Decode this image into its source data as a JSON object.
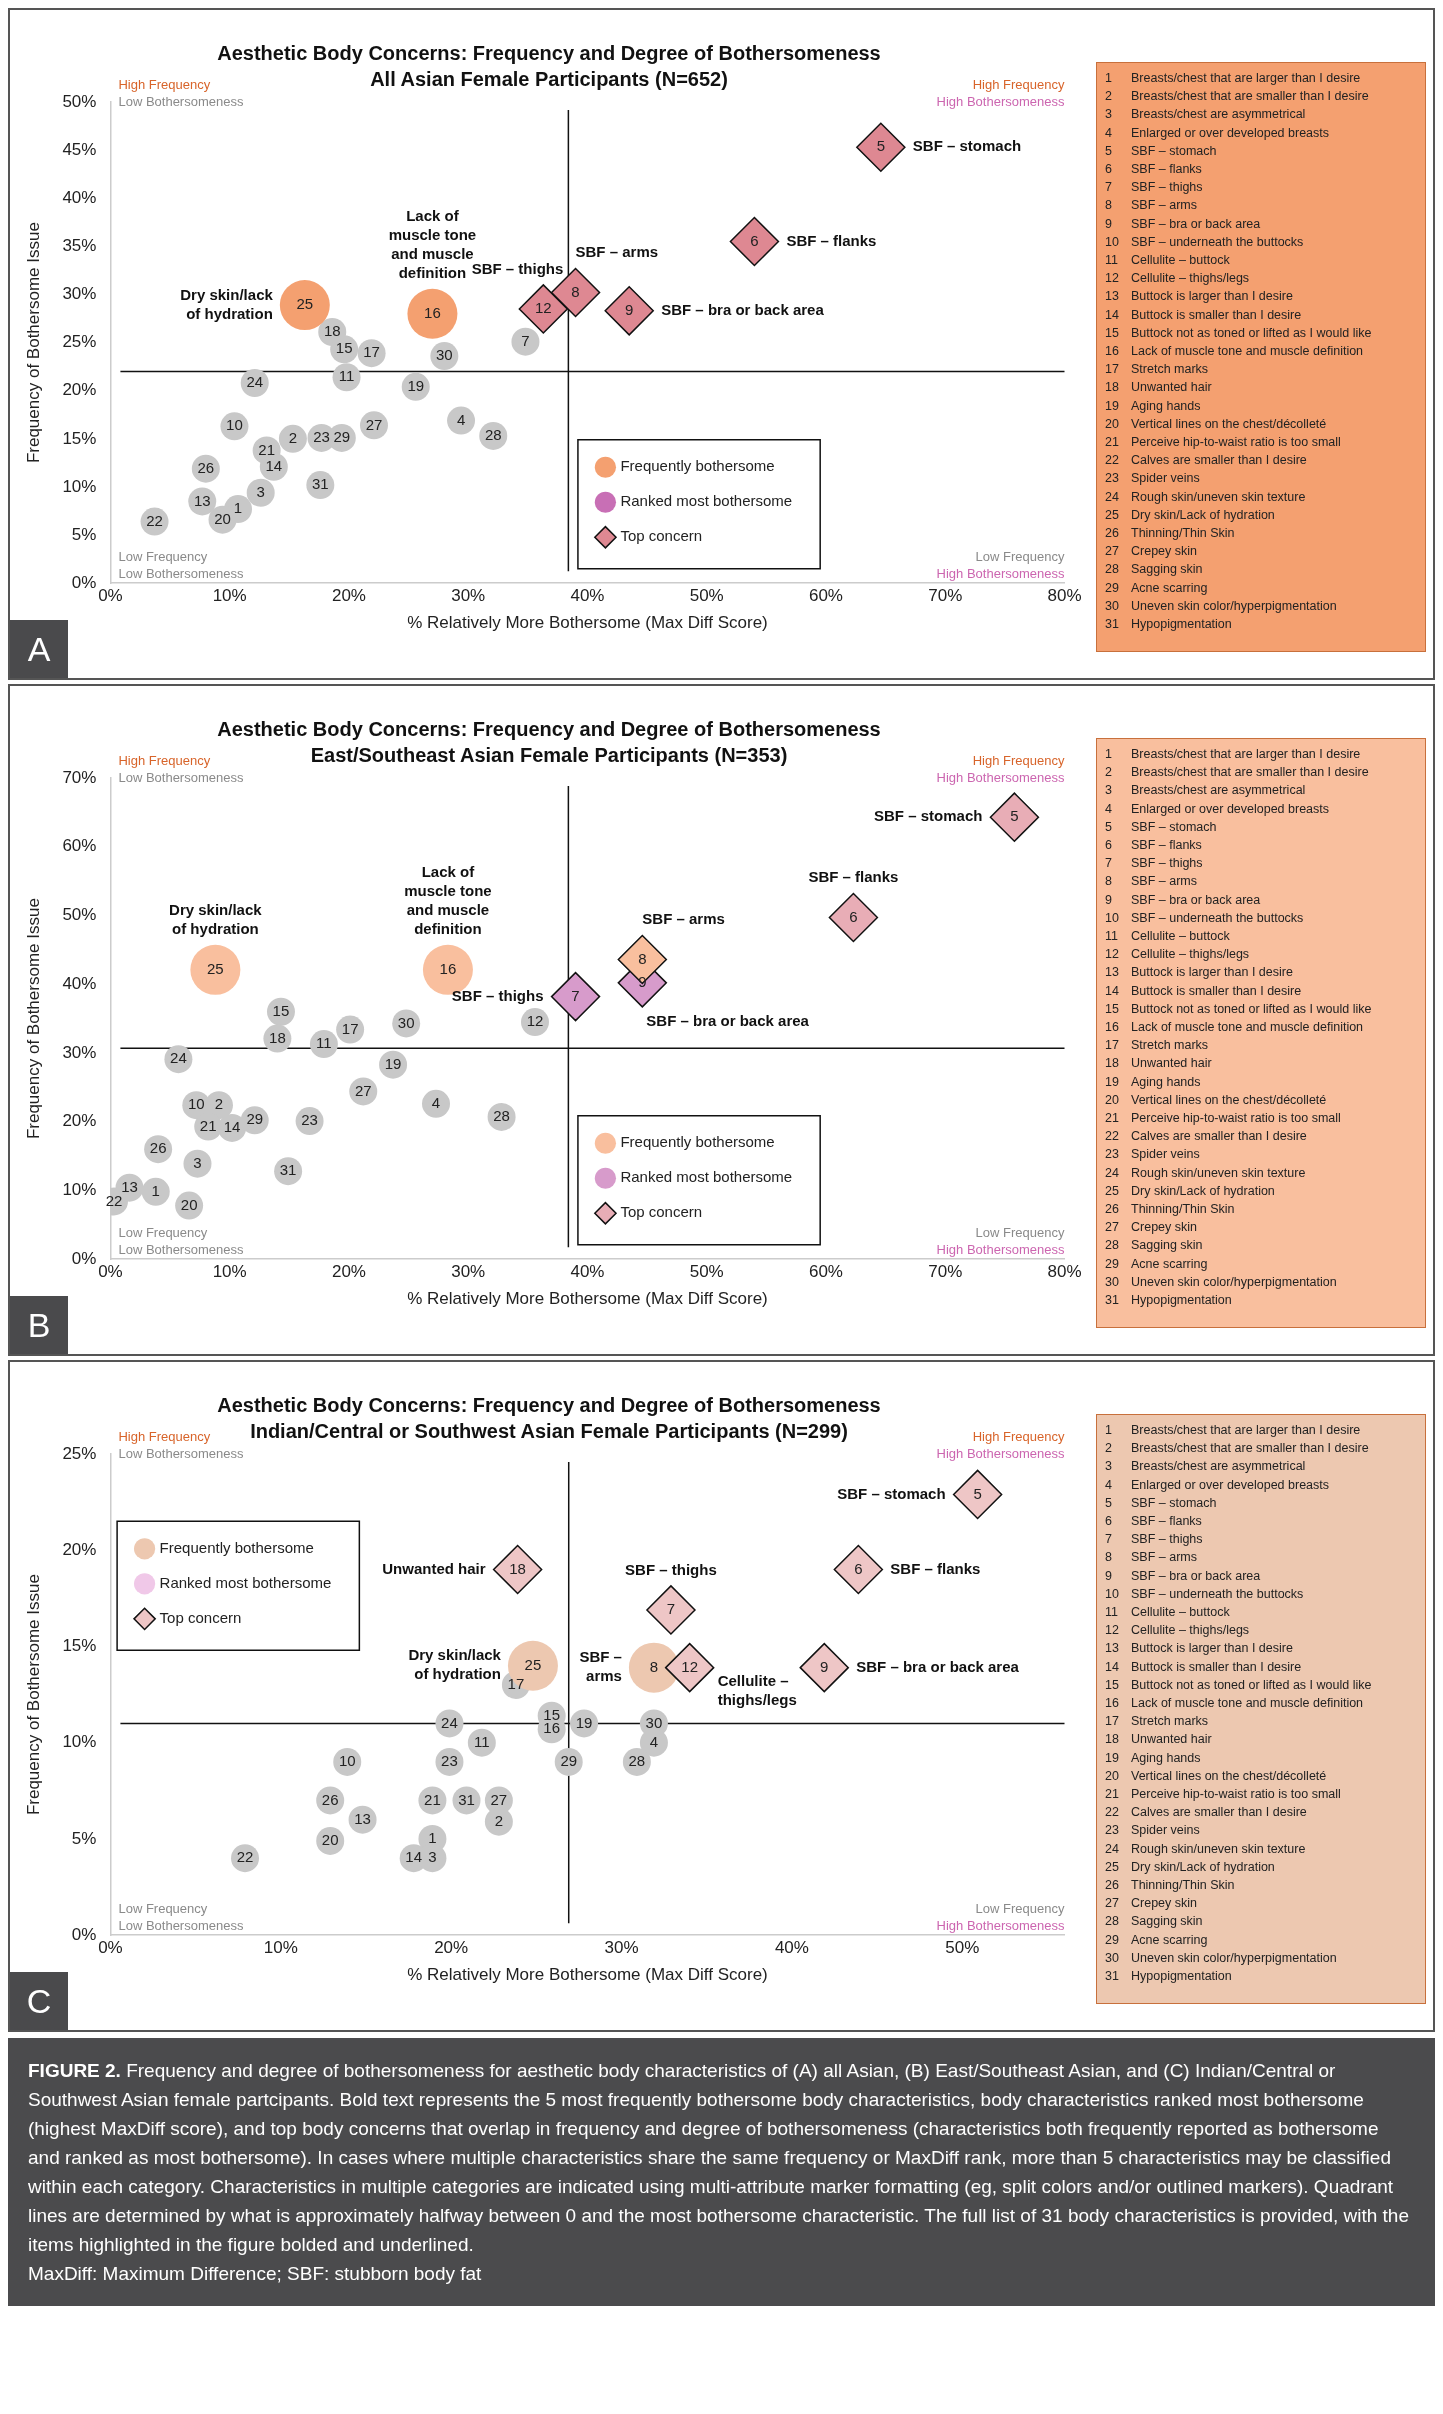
{
  "chart_data": [
    {
      "type": "scatter",
      "title": "Aesthetic Body Concerns: Frequency and Degree of Bothersomeness",
      "subtitle": "All Asian Female Participants (N=652)",
      "xlabel": "% Relatively More Bothersome (Max Diff Score)",
      "ylabel": "Frequency of Bothersome Issue",
      "xlim": [
        0,
        80
      ],
      "ylim": [
        0,
        50
      ],
      "xticks": [
        {
          "value": 0,
          "label": "0%"
        },
        {
          "value": 10,
          "label": "10%"
        },
        {
          "value": 20,
          "label": "20%"
        },
        {
          "value": 30,
          "label": "30%"
        },
        {
          "value": 40,
          "label": "40%"
        },
        {
          "value": 50,
          "label": "50%"
        },
        {
          "value": 60,
          "label": "60%"
        },
        {
          "value": 70,
          "label": "70%"
        },
        {
          "value": 80,
          "label": "80%"
        }
      ],
      "yticks": [
        {
          "value": 0,
          "label": "0%"
        },
        {
          "value": 5,
          "label": "5%"
        },
        {
          "value": 10,
          "label": "10%"
        },
        {
          "value": 15,
          "label": "15%"
        },
        {
          "value": 20,
          "label": "20%"
        },
        {
          "value": 25,
          "label": "25%"
        },
        {
          "value": 30,
          "label": "30%"
        },
        {
          "value": 35,
          "label": "35%"
        },
        {
          "value": 40,
          "label": "40%"
        },
        {
          "value": 45,
          "label": "45%"
        },
        {
          "value": 50,
          "label": "50%"
        }
      ],
      "legend": "bottom",
      "series": [
        {
          "color": "#c8c8c8",
          "marker": "circle",
          "x": [
            34.8,
            18.6,
            19.6,
            21.9,
            28.0,
            19.8,
            25.6,
            12.1,
            22.1,
            29.4,
            32.1,
            10.4,
            15.3,
            17.7,
            19.4,
            13.1,
            13.7,
            8.0,
            17.6,
            12.6,
            7.7,
            10.7,
            9.4,
            3.7
          ],
          "values": [
            25.1,
            26.1,
            24.3,
            23.9,
            23.6,
            21.4,
            20.4,
            20.8,
            16.4,
            16.9,
            15.3,
            16.3,
            15.0,
            15.1,
            15.1,
            13.8,
            12.1,
            11.9,
            10.2,
            9.4,
            8.5,
            7.7,
            6.6,
            6.4
          ]
        },
        {
          "name": "Frequently bothersome",
          "color": "#f4a070",
          "marker": "circle",
          "x": [
            16.3,
            27.0
          ],
          "values": [
            28.9,
            28.0
          ]
        },
        {
          "name": "Ranked most bothersome",
          "color": "#c86fb5",
          "marker": "circle"
        },
        {
          "name": "Top concern",
          "color": "#ffffff",
          "marker": "diamond",
          "x": [
            64.6,
            54.0,
            36.3,
            39.0,
            43.5
          ],
          "values": [
            45.3,
            35.5,
            28.5,
            30.2,
            28.3
          ],
          "colors": [
            "#de8892",
            "#de8892",
            "#de8892",
            "#de8892",
            "#de8892"
          ]
        }
      ],
      "ref_lines": [
        {
          "axis": "x",
          "value": 38.4
        },
        {
          "axis": "y",
          "value": 22.0
        }
      ],
      "annotations": [
        "High Frequency",
        "Low Bothersomeness",
        "High Frequency",
        "High Bothersomeness",
        "Low Frequency",
        "Low Bothersomeness",
        "Low Frequency",
        "High Bothersomeness",
        "A",
        "1 Breasts/chest that are larger than I desire",
        "2 Breasts/chest that are smaller than I desire",
        "3 Breasts/chest are asymmetrical",
        "4 Enlarged or over developed breasts",
        "5 SBF – stomach",
        "6 SBF – flanks",
        "7 SBF – thighs",
        "8 SBF – arms",
        "9 SBF – bra or back area",
        "10 SBF – underneath the buttocks",
        "11 Cellulite – buttock",
        "12 Cellulite – thighs/legs",
        "13 Buttock is larger than I desire",
        "14 Buttock is smaller than I desire",
        "15 Buttock not as toned or lifted as I would like",
        "16 Lack of muscle tone and muscle definition",
        "17 Stretch marks",
        "18 Unwanted hair",
        "19 Aging hands",
        "20 Vertical lines on the chest/décolleté",
        "21 Perceive hip-to-waist ratio is too small",
        "22 Calves are smaller than I desire",
        "23 Spider veins",
        "24 Rough skin/uneven skin texture",
        "25 Dry skin/Lack of hydration",
        "26 Thinning/Thin Skin",
        "27 Crepey skin",
        "28 Sagging skin",
        "29 Acne scarring",
        "30 Uneven skin color/hyperpigmentation",
        "31 Hypopigmentation",
        {
          "text": "Dry skin/lack\nof hydration",
          "x": 16.3,
          "y": 28.9
        },
        {
          "text": "Lack of\nmuscle tone\nand muscle\ndefinition",
          "x": 27.0,
          "y": 28.0
        },
        {
          "text": "SBF – thighs",
          "x": 36.3,
          "y": 28.5
        },
        {
          "text": "SBF – arms",
          "x": 39.0,
          "y": 30.2
        },
        {
          "text": "SBF – stomach",
          "x": 64.6,
          "y": 45.3
        },
        {
          "text": "SBF – flanks",
          "x": 54.0,
          "y": 35.5
        },
        {
          "text": "SBF – bra or back area",
          "x": 43.5,
          "y": 28.3
        },
        {
          "text": "7",
          "x": 34.8,
          "y": 25.1
        },
        {
          "text": "18",
          "x": 18.6,
          "y": 26.1
        },
        {
          "text": "15",
          "x": 19.6,
          "y": 24.3
        },
        {
          "text": "17",
          "x": 21.9,
          "y": 23.9
        },
        {
          "text": "30",
          "x": 28.0,
          "y": 23.6
        },
        {
          "text": "11",
          "x": 19.8,
          "y": 21.4
        },
        {
          "text": "19",
          "x": 25.6,
          "y": 20.4
        },
        {
          "text": "24",
          "x": 12.1,
          "y": 20.8
        },
        {
          "text": "27",
          "x": 22.1,
          "y": 16.4
        },
        {
          "text": "4",
          "x": 29.4,
          "y": 16.9
        },
        {
          "text": "28",
          "x": 32.1,
          "y": 15.3
        },
        {
          "text": "10",
          "x": 10.4,
          "y": 16.3
        },
        {
          "text": "2",
          "x": 15.3,
          "y": 15.0
        },
        {
          "text": "23",
          "x": 17.7,
          "y": 15.1
        },
        {
          "text": "29",
          "x": 19.4,
          "y": 15.1
        },
        {
          "text": "21",
          "x": 13.1,
          "y": 13.8
        },
        {
          "text": "14",
          "x": 13.7,
          "y": 12.1
        },
        {
          "text": "26",
          "x": 8.0,
          "y": 11.9
        },
        {
          "text": "31",
          "x": 17.6,
          "y": 10.2
        },
        {
          "text": "3",
          "x": 12.6,
          "y": 9.4
        },
        {
          "text": "13",
          "x": 7.7,
          "y": 8.5
        },
        {
          "text": "1",
          "x": 10.7,
          "y": 7.7
        },
        {
          "text": "20",
          "x": 9.4,
          "y": 6.6
        },
        {
          "text": "22",
          "x": 3.7,
          "y": 6.4
        },
        {
          "text": "25",
          "x": 16.3,
          "y": 28.9
        },
        {
          "text": "16",
          "x": 27.0,
          "y": 28.0
        },
        {
          "text": "5",
          "x": 64.6,
          "y": 45.3
        },
        {
          "text": "6",
          "x": 54.0,
          "y": 35.5
        },
        {
          "text": "12",
          "x": 36.3,
          "y": 28.5
        },
        {
          "text": "8",
          "x": 39.0,
          "y": 30.2
        },
        {
          "text": "9",
          "x": 43.5,
          "y": 28.3
        }
      ]
    },
    {
      "type": "scatter",
      "title": "Aesthetic Body Concerns: Frequency and Degree of Bothersomeness",
      "subtitle": "East/Southeast Asian Female Participants (N=353)",
      "xlabel": "% Relatively More Bothersome (Max Diff Score)",
      "ylabel": "Frequency of Bothersome Issue",
      "xlim": [
        0,
        80
      ],
      "ylim": [
        0,
        70
      ],
      "xticks": [
        {
          "value": 0,
          "label": "0%"
        },
        {
          "value": 10,
          "label": "10%"
        },
        {
          "value": 20,
          "label": "20%"
        },
        {
          "value": 30,
          "label": "30%"
        },
        {
          "value": 40,
          "label": "40%"
        },
        {
          "value": 50,
          "label": "50%"
        },
        {
          "value": 60,
          "label": "60%"
        },
        {
          "value": 70,
          "label": "70%"
        },
        {
          "value": 80,
          "label": "80%"
        }
      ],
      "yticks": [
        {
          "value": 0,
          "label": "0%"
        },
        {
          "value": 10,
          "label": "10%"
        },
        {
          "value": 20,
          "label": "20%"
        },
        {
          "value": 30,
          "label": "30%"
        },
        {
          "value": 40,
          "label": "40%"
        },
        {
          "value": 50,
          "label": "50%"
        },
        {
          "value": 60,
          "label": "60%"
        },
        {
          "value": 70,
          "label": "70%"
        }
      ],
      "legend": "bottom",
      "series": [
        {
          "color": "#c8c8c8",
          "marker": "circle",
          "x": [
            35.6,
            14.3,
            14.0,
            17.9,
            20.1,
            24.8,
            5.7,
            23.7,
            21.2,
            27.3,
            32.8,
            7.2,
            9.1,
            8.2,
            10.2,
            12.1,
            16.7,
            4.0,
            7.3,
            14.9,
            1.6,
            3.8,
            0.3,
            6.6
          ],
          "values": [
            34.5,
            36.0,
            32.1,
            31.3,
            33.4,
            34.3,
            29.1,
            28.3,
            24.4,
            22.6,
            20.7,
            22.4,
            22.4,
            19.3,
            19.1,
            20.2,
            20.1,
            16.0,
            13.9,
            12.8,
            10.4,
            9.8,
            8.4,
            7.8
          ]
        },
        {
          "name": "Frequently bothersome",
          "color": "#f9bf9e",
          "marker": "circle",
          "x": [
            8.8,
            28.3
          ],
          "values": [
            42.1,
            42.1
          ]
        },
        {
          "name": "Ranked most bothersome",
          "color": "#d79bcb",
          "marker": "circle"
        },
        {
          "name": "Top concern",
          "color": "#ffffff",
          "marker": "diamond",
          "x": [
            75.8,
            62.3,
            44.6,
            44.6,
            39.0
          ],
          "values": [
            64.3,
            49.7,
            40.2,
            43.6,
            38.2
          ],
          "colors": [
            "#e8adb6",
            "#e8adb6",
            "#d79bcb",
            "#f9bf9e",
            "#d79bcb"
          ]
        }
      ],
      "ref_lines": [
        {
          "axis": "x",
          "value": 38.4
        },
        {
          "axis": "y",
          "value": 30.7
        }
      ],
      "annotations": [
        "High Frequency",
        "Low Bothersomeness",
        "High Frequency",
        "High Bothersomeness",
        "Low Frequency",
        "Low Bothersomeness",
        "Low Frequency",
        "High Bothersomeness",
        "B",
        "1 Breasts/chest that are larger than I desire",
        "2 Breasts/chest that are smaller than I desire",
        "3 Breasts/chest are asymmetrical",
        "4 Enlarged or over developed breasts",
        "5 SBF – stomach",
        "6 SBF – flanks",
        "7 SBF – thighs",
        "8 SBF – arms",
        "9 SBF – bra or back area",
        "10 SBF – underneath the buttocks",
        "11 Cellulite – buttock",
        "12 Cellulite – thighs/legs",
        "13 Buttock is larger than I desire",
        "14 Buttock is smaller than I desire",
        "15 Buttock not as toned or lifted as I would like",
        "16 Lack of muscle tone and muscle definition",
        "17 Stretch marks",
        "18 Unwanted hair",
        "19 Aging hands",
        "20 Vertical lines on the chest/décolleté",
        "21 Perceive hip-to-waist ratio is too small",
        "22 Calves are smaller than I desire",
        "23 Spider veins",
        "24 Rough skin/uneven skin texture",
        "25 Dry skin/Lack of hydration",
        "26 Thinning/Thin Skin",
        "27 Crepey skin",
        "28 Sagging skin",
        "29 Acne scarring",
        "30 Uneven skin color/hyperpigmentation",
        "31 Hypopigmentation",
        {
          "text": "Dry skin/lack\nof hydration",
          "x": 8.8,
          "y": 42.1
        },
        {
          "text": "Lack of\nmuscle tone\nand muscle\ndefinition",
          "x": 28.3,
          "y": 42.1
        },
        {
          "text": "SBF – thighs",
          "x": 39.0,
          "y": 38.2
        },
        {
          "text": "SBF – arms",
          "x": 44.6,
          "y": 43.6
        },
        {
          "text": "SBF – stomach",
          "x": 75.8,
          "y": 64.3
        },
        {
          "text": "SBF – flanks",
          "x": 62.3,
          "y": 49.7
        },
        {
          "text": "SBF – bra or back area",
          "x": 44.6,
          "y": 40.2
        },
        {
          "text": "12",
          "x": 35.6,
          "y": 34.5
        },
        {
          "text": "15",
          "x": 14.3,
          "y": 36.0
        },
        {
          "text": "18",
          "x": 14.0,
          "y": 32.1
        },
        {
          "text": "11",
          "x": 17.9,
          "y": 31.3
        },
        {
          "text": "17",
          "x": 20.1,
          "y": 33.4
        },
        {
          "text": "30",
          "x": 24.8,
          "y": 34.3
        },
        {
          "text": "24",
          "x": 5.7,
          "y": 29.1
        },
        {
          "text": "19",
          "x": 23.7,
          "y": 28.3
        },
        {
          "text": "27",
          "x": 21.2,
          "y": 24.4
        },
        {
          "text": "4",
          "x": 27.3,
          "y": 22.6
        },
        {
          "text": "28",
          "x": 32.8,
          "y": 20.7
        },
        {
          "text": "10",
          "x": 7.2,
          "y": 22.4
        },
        {
          "text": "2",
          "x": 9.1,
          "y": 22.4
        },
        {
          "text": "21",
          "x": 8.2,
          "y": 19.3
        },
        {
          "text": "14",
          "x": 10.2,
          "y": 19.1
        },
        {
          "text": "29",
          "x": 12.1,
          "y": 20.2
        },
        {
          "text": "23",
          "x": 16.7,
          "y": 20.1
        },
        {
          "text": "26",
          "x": 4.0,
          "y": 16.0
        },
        {
          "text": "3",
          "x": 7.3,
          "y": 13.9
        },
        {
          "text": "31",
          "x": 14.9,
          "y": 12.8
        },
        {
          "text": "13",
          "x": 1.6,
          "y": 10.4
        },
        {
          "text": "1",
          "x": 3.8,
          "y": 9.8
        },
        {
          "text": "22",
          "x": 0.3,
          "y": 8.4
        },
        {
          "text": "20",
          "x": 6.6,
          "y": 7.8
        },
        {
          "text": "25",
          "x": 8.8,
          "y": 42.1
        },
        {
          "text": "16",
          "x": 28.3,
          "y": 42.1
        },
        {
          "text": "5",
          "x": 75.8,
          "y": 64.3
        },
        {
          "text": "6",
          "x": 62.3,
          "y": 49.7
        },
        {
          "text": "8",
          "x": 44.6,
          "y": 43.6
        },
        {
          "text": "9",
          "x": 44.6,
          "y": 40.2
        },
        {
          "text": "7",
          "x": 39.0,
          "y": 38.2
        }
      ]
    },
    {
      "type": "scatter",
      "title": "Aesthetic Body Concerns: Frequency and Degree of Bothersomeness",
      "subtitle": "Indian/Central or Southwest Asian Female Participants (N=299)",
      "xlabel": "% Relatively More Bothersome (Max Diff Score)",
      "ylabel": "Frequency of Bothersome Issue",
      "xlim": [
        0,
        56
      ],
      "ylim": [
        0,
        25
      ],
      "xticks": [
        {
          "value": 0,
          "label": "0%"
        },
        {
          "value": 10,
          "label": "10%"
        },
        {
          "value": 20,
          "label": "20%"
        },
        {
          "value": 30,
          "label": "30%"
        },
        {
          "value": 40,
          "label": "40%"
        },
        {
          "value": 50,
          "label": "50%"
        }
      ],
      "yticks": [
        {
          "value": 0,
          "label": "0%"
        },
        {
          "value": 5,
          "label": "5%"
        },
        {
          "value": 10,
          "label": "10%"
        },
        {
          "value": 15,
          "label": "15%"
        },
        {
          "value": 20,
          "label": "20%"
        },
        {
          "value": 25,
          "label": "25%"
        }
      ],
      "legend": "top left",
      "series": [
        {
          "color": "#c8c8c8",
          "marker": "circle",
          "x": [
            23.8,
            25.9,
            25.9,
            27.8,
            19.9,
            31.9,
            31.9,
            21.8,
            26.9,
            30.9,
            13.9,
            19.9,
            12.9,
            14.8,
            18.9,
            20.9,
            22.8,
            22.8,
            12.9,
            18.9,
            17.8,
            18.9,
            7.9
          ],
          "values": [
            13.0,
            10.7,
            11.4,
            11.0,
            11.0,
            11.0,
            10.0,
            10.0,
            9.0,
            9.0,
            9.0,
            9.0,
            7.0,
            6.0,
            7.0,
            7.0,
            7.0,
            5.9,
            4.9,
            5.0,
            4.0,
            4.0,
            4.0
          ]
        },
        {
          "name": "Frequently bothersome",
          "color": "#edc8b0",
          "marker": "circle",
          "x": [
            24.8,
            31.9
          ],
          "values": [
            14.0,
            13.9
          ]
        },
        {
          "name": "Ranked most bothersome",
          "color": "#f0c8e8",
          "marker": "circle"
        },
        {
          "name": "Top concern",
          "color": "#ffffff",
          "marker": "diamond",
          "x": [
            50.9,
            43.9,
            23.9,
            32.9,
            34.0,
            41.9
          ],
          "values": [
            22.9,
            19.0,
            19.0,
            16.9,
            13.9,
            13.9
          ],
          "colors": [
            "#eec6c6",
            "#eec6c6",
            "#eec6c6",
            "#eec6c6",
            "#eec6c6",
            "#eec6c6"
          ]
        }
      ],
      "ref_lines": [
        {
          "axis": "x",
          "value": 26.9
        },
        {
          "axis": "y",
          "value": 11.0
        }
      ],
      "annotations": [
        "High Frequency",
        "Low Bothersomeness",
        "High Frequency",
        "High Bothersomeness",
        "Low Frequency",
        "Low Bothersomeness",
        "Low Frequency",
        "High Bothersomeness",
        "C",
        "1 Breasts/chest that are larger than I desire",
        "2 Breasts/chest that are smaller than I desire",
        "3 Breasts/chest are asymmetrical",
        "4 Enlarged or over developed breasts",
        "5 SBF – stomach",
        "6 SBF – flanks",
        "7 SBF – thighs",
        "8 SBF – arms",
        "9 SBF – bra or back area",
        "10 SBF – underneath the buttocks",
        "11 Cellulite – buttock",
        "12 Cellulite – thighs/legs",
        "13 Buttock is larger than I desire",
        "14 Buttock is smaller than I desire",
        "15 Buttock not as toned or lifted as I would like",
        "16 Lack of muscle tone and muscle definition",
        "17 Stretch marks",
        "18 Unwanted hair",
        "19 Aging hands",
        "20 Vertical lines on the chest/décolleté",
        "21 Perceive hip-to-waist ratio is too small",
        "22 Calves are smaller than I desire",
        "23 Spider veins",
        "24 Rough skin/uneven skin texture",
        "25 Dry skin/Lack of hydration",
        "26 Thinning/Thin Skin",
        "27 Crepey skin",
        "28 Sagging skin",
        "29 Acne scarring",
        "30 Uneven skin color/hyperpigmentation",
        "31 Hypopigmentation",
        {
          "text": "Unwanted hair",
          "x": 23.9,
          "y": 19.0
        },
        {
          "text": "Dry skin/lack\nof hydration",
          "x": 24.8,
          "y": 14.0
        },
        {
          "text": "SBF – thighs",
          "x": 32.9,
          "y": 16.9
        },
        {
          "text": "SBF –\narms",
          "x": 31.9,
          "y": 13.9
        },
        {
          "text": "Cellulite –\nthighs/legs",
          "x": 34.0,
          "y": 13.9
        },
        {
          "text": "SBF – stomach",
          "x": 50.9,
          "y": 22.9
        },
        {
          "text": "SBF – flanks",
          "x": 43.9,
          "y": 19.0
        },
        {
          "text": "SBF – bra or back area",
          "x": 41.9,
          "y": 13.9
        },
        {
          "text": "17",
          "x": 23.8,
          "y": 13.0
        },
        {
          "text": "15",
          "x": 25.9,
          "y": 11.4
        },
        {
          "text": "16",
          "x": 25.9,
          "y": 10.7
        },
        {
          "text": "19",
          "x": 27.8,
          "y": 11.0
        },
        {
          "text": "24",
          "x": 19.9,
          "y": 11.0
        },
        {
          "text": "30",
          "x": 31.9,
          "y": 11.0
        },
        {
          "text": "4",
          "x": 31.9,
          "y": 10.0
        },
        {
          "text": "11",
          "x": 21.8,
          "y": 10.0
        },
        {
          "text": "29",
          "x": 26.9,
          "y": 9.0
        },
        {
          "text": "28",
          "x": 30.9,
          "y": 9.0
        },
        {
          "text": "10",
          "x": 13.9,
          "y": 9.0
        },
        {
          "text": "23",
          "x": 19.9,
          "y": 9.0
        },
        {
          "text": "26",
          "x": 12.9,
          "y": 7.0
        },
        {
          "text": "13",
          "x": 14.8,
          "y": 6.0
        },
        {
          "text": "21",
          "x": 18.9,
          "y": 7.0
        },
        {
          "text": "31",
          "x": 20.9,
          "y": 7.0
        },
        {
          "text": "27",
          "x": 22.8,
          "y": 7.0
        },
        {
          "text": "2",
          "x": 22.8,
          "y": 5.9
        },
        {
          "text": "20",
          "x": 12.9,
          "y": 4.9
        },
        {
          "text": "1",
          "x": 18.9,
          "y": 5.0
        },
        {
          "text": "14",
          "x": 17.8,
          "y": 4.0
        },
        {
          "text": "3",
          "x": 18.9,
          "y": 4.0
        },
        {
          "text": "22",
          "x": 7.9,
          "y": 4.0
        },
        {
          "text": "25",
          "x": 24.8,
          "y": 14.0
        },
        {
          "text": "8",
          "x": 31.9,
          "y": 13.9
        },
        {
          "text": "5",
          "x": 50.9,
          "y": 22.9
        },
        {
          "text": "6",
          "x": 43.9,
          "y": 19.0
        },
        {
          "text": "18",
          "x": 23.9,
          "y": 19.0
        },
        {
          "text": "7",
          "x": 32.9,
          "y": 16.9
        },
        {
          "text": "12",
          "x": 34.0,
          "y": 13.9
        },
        {
          "text": "9",
          "x": 41.9,
          "y": 13.9
        }
      ]
    },
    {
      "type": "other",
      "color": "#4b4b4d",
      "title": "FIGURE 2.",
      "annotations": [
        "Frequency and degree of bothersomeness for aesthetic body characteristics of (A) all Asian, (B) East/Southeast Asian, and (C) Indian/Central or Southwest Asian female partcipants. Bold text represents the 5 most frequently bothersome body characteristics, body characteristics ranked most bothersome (highest MaxDiff score), and top body concerns that overlap in frequency and degree of bothersomeness (characteristics both frequently reported as bothersome and ranked as most bothersome). In cases where multiple characteristics share the same frequency or MaxDiff rank, more than 5 characteristics may be classified within each category. Characteristics in multiple categories are indicated using multi-attribute marker formatting (eg, split colors and/or outlined markers). Quadrant lines are determined by what is approximately halfway between 0 and the most bothersome characteristic. The full list of 31 body characteristics is provided, with the items highlighted in the figure bolded and underlined.",
        "MaxDiff: Maximum Difference; SBF: stubborn body fat"
      ]
    }
  ]
}
